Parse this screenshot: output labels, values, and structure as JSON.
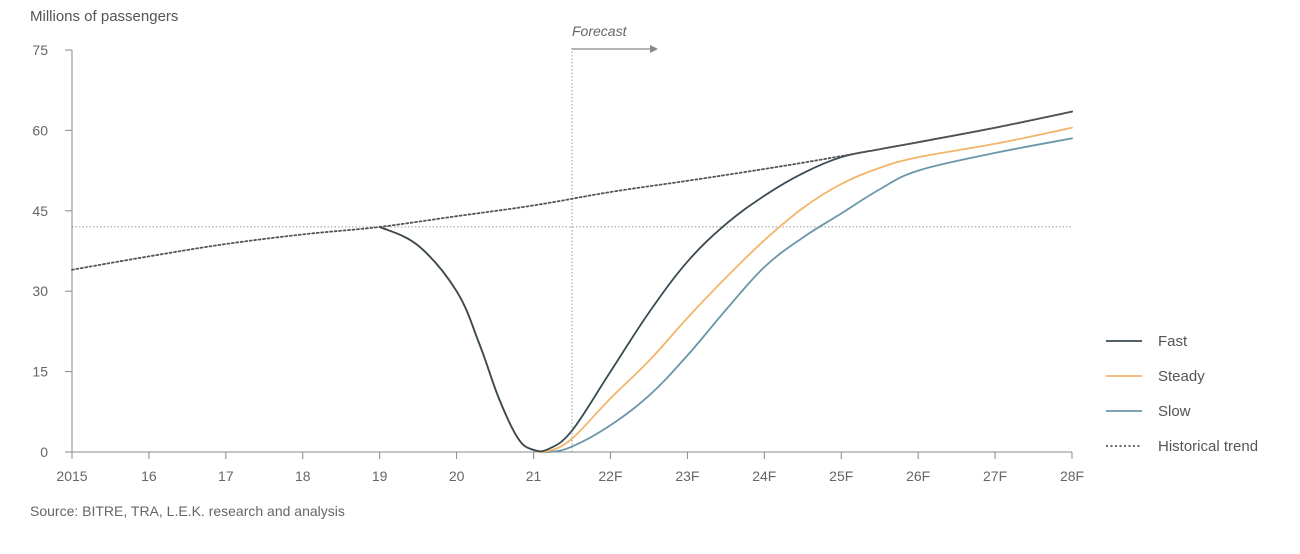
{
  "chart_data": {
    "type": "line",
    "ylabel": "Millions of passengers",
    "ylim": [
      0,
      75
    ],
    "yticks": [
      0,
      15,
      30,
      45,
      60,
      75
    ],
    "xlim": [
      2015,
      2028
    ],
    "xticks": [
      {
        "x": 2015,
        "label": "2015"
      },
      {
        "x": 2016,
        "label": "16"
      },
      {
        "x": 2017,
        "label": "17"
      },
      {
        "x": 2018,
        "label": "18"
      },
      {
        "x": 2019,
        "label": "19"
      },
      {
        "x": 2020,
        "label": "20"
      },
      {
        "x": 2021,
        "label": "21"
      },
      {
        "x": 2022,
        "label": "22F"
      },
      {
        "x": 2023,
        "label": "23F"
      },
      {
        "x": 2024,
        "label": "24F"
      },
      {
        "x": 2025,
        "label": "25F"
      },
      {
        "x": 2026,
        "label": "26F"
      },
      {
        "x": 2027,
        "label": "27F"
      },
      {
        "x": 2028,
        "label": "28F"
      }
    ],
    "annotation": {
      "text": "Forecast",
      "x": 2021.5
    },
    "reference_line_y": 42,
    "series": [
      {
        "name": "Historical trend",
        "color": "#555555",
        "dash": "dotted",
        "points": [
          [
            2015,
            34
          ],
          [
            2016,
            36.5
          ],
          [
            2017,
            38.8
          ],
          [
            2018,
            40.6
          ],
          [
            2019,
            42
          ],
          [
            2020,
            44
          ],
          [
            2021,
            46
          ],
          [
            2022,
            48.5
          ],
          [
            2023,
            50.6
          ],
          [
            2024,
            52.8
          ],
          [
            2025,
            55.2
          ],
          [
            2026,
            57.8
          ],
          [
            2027,
            60.5
          ],
          [
            2028,
            63.5
          ]
        ]
      },
      {
        "name": "Fast",
        "color": "#3a4a52",
        "points": [
          [
            2019,
            42
          ],
          [
            2019.5,
            38.5
          ],
          [
            2020,
            30
          ],
          [
            2020.3,
            20
          ],
          [
            2020.55,
            10
          ],
          [
            2020.8,
            2.5
          ],
          [
            2021,
            0.4
          ],
          [
            2021.2,
            0.6
          ],
          [
            2021.5,
            4
          ],
          [
            2022,
            15
          ],
          [
            2022.5,
            26
          ],
          [
            2023,
            35.5
          ],
          [
            2023.5,
            42.5
          ],
          [
            2024,
            47.8
          ],
          [
            2024.5,
            52
          ],
          [
            2025,
            55
          ],
          [
            2025.5,
            56.5
          ],
          [
            2026,
            57.8
          ],
          [
            2027,
            60.5
          ],
          [
            2028,
            63.5
          ]
        ]
      },
      {
        "name": "Steady",
        "color": "#f2b56a",
        "points": [
          [
            2019,
            42
          ],
          [
            2019.5,
            38.5
          ],
          [
            2020,
            30
          ],
          [
            2020.3,
            20
          ],
          [
            2020.55,
            10
          ],
          [
            2020.8,
            2.5
          ],
          [
            2021,
            0.4
          ],
          [
            2021.2,
            0.2
          ],
          [
            2021.5,
            2.5
          ],
          [
            2022,
            10
          ],
          [
            2022.5,
            17
          ],
          [
            2023,
            25
          ],
          [
            2023.5,
            32.5
          ],
          [
            2024,
            39.5
          ],
          [
            2024.5,
            45.5
          ],
          [
            2025,
            50
          ],
          [
            2025.5,
            53
          ],
          [
            2026,
            55
          ],
          [
            2027,
            57.5
          ],
          [
            2028,
            60.5
          ]
        ]
      },
      {
        "name": "Slow",
        "color": "#6a97a8",
        "points": [
          [
            2019,
            42
          ],
          [
            2019.5,
            38.5
          ],
          [
            2020,
            30
          ],
          [
            2020.3,
            20
          ],
          [
            2020.55,
            10
          ],
          [
            2020.8,
            2.5
          ],
          [
            2021,
            0.4
          ],
          [
            2021.2,
            0
          ],
          [
            2021.5,
            1
          ],
          [
            2022,
            5
          ],
          [
            2022.5,
            10.5
          ],
          [
            2023,
            18
          ],
          [
            2023.5,
            26.5
          ],
          [
            2024,
            34.5
          ],
          [
            2024.5,
            40
          ],
          [
            2025,
            44.5
          ],
          [
            2025.5,
            49
          ],
          [
            2026,
            52.5
          ],
          [
            2027,
            55.8
          ],
          [
            2028,
            58.5
          ]
        ]
      }
    ],
    "legend": [
      {
        "name": "Fast",
        "color": "#3a4a52",
        "dash": "solid"
      },
      {
        "name": "Steady",
        "color": "#f2b56a",
        "dash": "solid"
      },
      {
        "name": "Slow",
        "color": "#6a97a8",
        "dash": "solid"
      },
      {
        "name": "Historical trend",
        "color": "#555555",
        "dash": "dotted"
      }
    ],
    "legend_position": "right",
    "source": "Source: BITRE, TRA, L.E.K. research and analysis"
  }
}
